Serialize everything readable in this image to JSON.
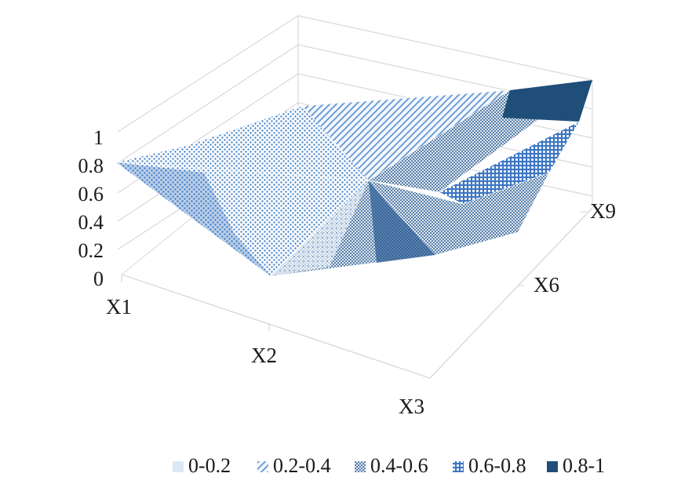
{
  "chart_data": {
    "type": "surface",
    "title": "",
    "x_categories": [
      "X1",
      "X2",
      "X3"
    ],
    "y_series": [
      "X9",
      "X6",
      "X3"
    ],
    "x_axis_labels": [
      "X1",
      "X2",
      "X3"
    ],
    "depth_axis_labels": [
      "X9",
      "X6"
    ],
    "z_ticks": [
      "0",
      "0.2",
      "0.4",
      "0.6",
      "0.8",
      "1"
    ],
    "zlim": [
      0,
      1
    ],
    "grid": true,
    "legend_position": "bottom",
    "surface_values": [
      [
        0.8,
        0.15,
        0.4
      ],
      [
        0.55,
        0.62,
        0.55
      ],
      [
        0.55,
        0.5,
        1.0
      ]
    ],
    "legend": [
      {
        "label": "0-0.2",
        "color": "#dbe8f6",
        "pattern": "solid-light"
      },
      {
        "label": "0.2-0.4",
        "color": "#6d9fd6",
        "pattern": "dotted"
      },
      {
        "label": "0.4-0.6",
        "color": "#4f7fb8",
        "pattern": "checker"
      },
      {
        "label": "0.6-0.8",
        "color": "#3d76c1",
        "pattern": "grid"
      },
      {
        "label": "0.8-1",
        "color": "#1f4e79",
        "pattern": "solid-dark"
      }
    ]
  }
}
